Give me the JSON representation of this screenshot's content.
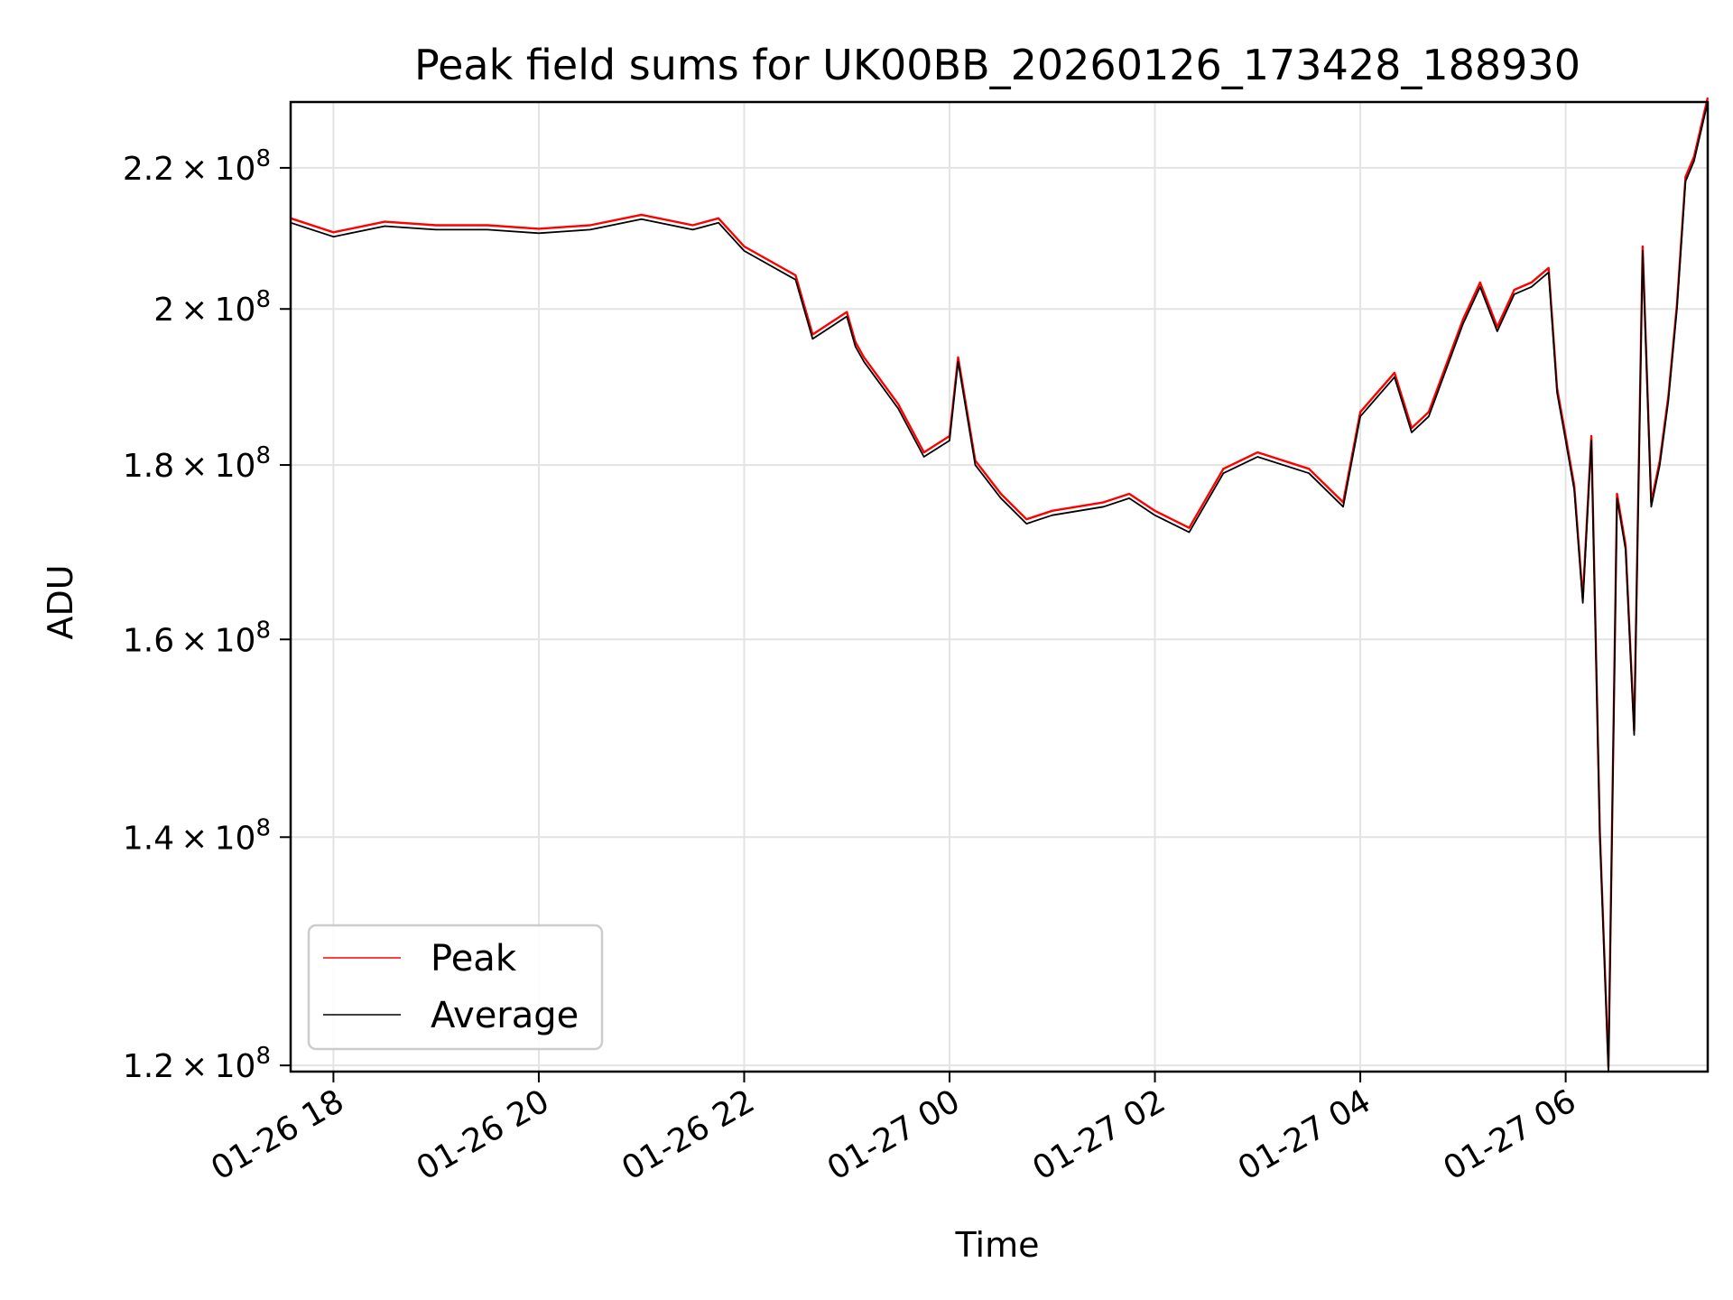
{
  "chart_data": {
    "type": "line",
    "title": "Peak field sums for UK00BB_20260126_173428_188930",
    "xlabel": "Time",
    "ylabel": "ADU",
    "y_scale": "log",
    "xlim": [
      "2026-01-26 17:35",
      "2026-01-27 07:23"
    ],
    "ylim": [
      119500000,
      230000000
    ],
    "x_ticks": [
      {
        "value": "2026-01-26 18:00",
        "label": "01-26 18"
      },
      {
        "value": "2026-01-26 20:00",
        "label": "01-26 20"
      },
      {
        "value": "2026-01-26 22:00",
        "label": "01-26 22"
      },
      {
        "value": "2026-01-27 00:00",
        "label": "01-27 00"
      },
      {
        "value": "2026-01-27 02:00",
        "label": "01-27 02"
      },
      {
        "value": "2026-01-27 04:00",
        "label": "01-27 04"
      },
      {
        "value": "2026-01-27 06:00",
        "label": "01-27 06"
      }
    ],
    "y_ticks": [
      {
        "value": 120000000,
        "mantissa": "1.2",
        "exponent": "8"
      },
      {
        "value": 140000000,
        "mantissa": "1.4",
        "exponent": "8"
      },
      {
        "value": 160000000,
        "mantissa": "1.6",
        "exponent": "8"
      },
      {
        "value": 180000000,
        "mantissa": "1.8",
        "exponent": "8"
      },
      {
        "value": 200000000,
        "mantissa": "2",
        "exponent": "8"
      },
      {
        "value": 220000000,
        "mantissa": "2.2",
        "exponent": "8"
      }
    ],
    "grid": true,
    "legend_position": "lower-left",
    "series": [
      {
        "name": "Peak",
        "color": "#ff0000",
        "offset_fraction": 0.003
      },
      {
        "name": "Average",
        "color": "#000000",
        "offset_fraction": 0
      }
    ],
    "x": [
      "2026-01-26 17:35",
      "2026-01-26 18:00",
      "2026-01-26 18:30",
      "2026-01-26 19:00",
      "2026-01-26 19:30",
      "2026-01-26 20:00",
      "2026-01-26 20:30",
      "2026-01-26 21:00",
      "2026-01-26 21:30",
      "2026-01-26 21:45",
      "2026-01-26 22:00",
      "2026-01-26 22:30",
      "2026-01-26 22:40",
      "2026-01-26 23:00",
      "2026-01-26 23:05",
      "2026-01-26 23:10",
      "2026-01-26 23:30",
      "2026-01-26 23:45",
      "2026-01-27 00:00",
      "2026-01-27 00:05",
      "2026-01-27 00:15",
      "2026-01-27 00:30",
      "2026-01-27 00:45",
      "2026-01-27 01:00",
      "2026-01-27 01:30",
      "2026-01-27 01:45",
      "2026-01-27 02:00",
      "2026-01-27 02:20",
      "2026-01-27 02:40",
      "2026-01-27 03:00",
      "2026-01-27 03:30",
      "2026-01-27 03:50",
      "2026-01-27 04:00",
      "2026-01-27 04:20",
      "2026-01-27 04:30",
      "2026-01-27 04:40",
      "2026-01-27 05:00",
      "2026-01-27 05:10",
      "2026-01-27 05:20",
      "2026-01-27 05:30",
      "2026-01-27 05:40",
      "2026-01-27 05:50",
      "2026-01-27 05:55",
      "2026-01-27 06:00",
      "2026-01-27 06:05",
      "2026-01-27 06:10",
      "2026-01-27 06:15",
      "2026-01-27 06:20",
      "2026-01-27 06:25",
      "2026-01-27 06:30",
      "2026-01-27 06:35",
      "2026-01-27 06:40",
      "2026-01-27 06:45",
      "2026-01-27 06:50",
      "2026-01-27 06:55",
      "2026-01-27 07:00",
      "2026-01-27 07:05",
      "2026-01-27 07:10",
      "2026-01-27 07:15",
      "2026-01-27 07:23"
    ],
    "values": [
      212000000,
      210000000,
      211500000,
      211000000,
      211000000,
      210500000,
      211000000,
      212500000,
      211000000,
      212000000,
      208000000,
      204000000,
      196000000,
      199000000,
      195000000,
      193000000,
      187000000,
      181000000,
      183000000,
      193000000,
      180000000,
      176000000,
      173000000,
      174000000,
      175000000,
      176000000,
      174000000,
      172000000,
      179000000,
      181000000,
      179000000,
      175000000,
      186000000,
      191000000,
      184000000,
      186000000,
      198000000,
      203000000,
      197000000,
      202000000,
      203000000,
      205000000,
      189000000,
      183000000,
      177000000,
      164000000,
      183000000,
      140000000,
      119500000,
      176000000,
      170000000,
      150000000,
      208000000,
      175000000,
      180000000,
      188000000,
      200000000,
      218000000,
      221000000,
      230000000
    ]
  }
}
